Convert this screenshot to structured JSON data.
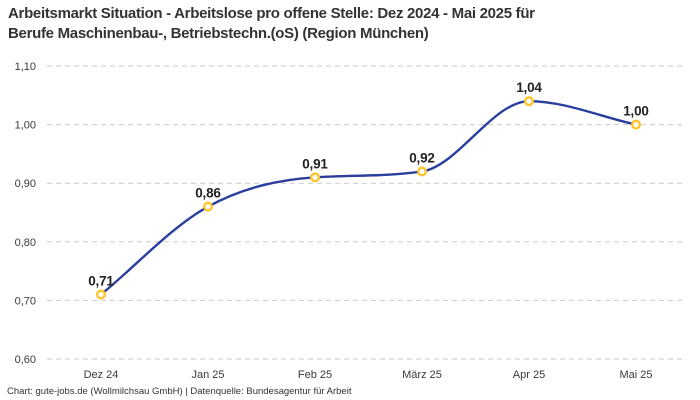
{
  "title": {
    "text": "Arbeitsmarkt Situation - Arbeitslose pro offene Stelle: Dez 2024 - Mai 2025 für\nBerufe Maschinenbau-, Betriebstechn.(oS) (Region München)"
  },
  "footer": {
    "text": "Chart: gute-jobs.de (Wollmilchsau GmbH) | Datenquelle: Bundesagentur für Arbeit"
  },
  "chart_data": {
    "type": "line",
    "title": "Arbeitsmarkt Situation - Arbeitslose pro offene Stelle: Dez 2024 - Mai 2025 für Berufe Maschinenbau-, Betriebstechn.(oS) (Region München)",
    "categories": [
      "Dez 24",
      "Jan 25",
      "Feb 25",
      "März 25",
      "Apr 25",
      "Mai 25"
    ],
    "values": [
      0.71,
      0.86,
      0.91,
      0.92,
      1.04,
      1.0
    ],
    "point_labels": [
      "0,71",
      "0,86",
      "0,91",
      "0,92",
      "1,04",
      "1,00"
    ],
    "y_tick_values": [
      1.1,
      1.0,
      0.9,
      0.8,
      0.7,
      0.6
    ],
    "y_tick_labels": [
      "1,10",
      "1,00",
      "0,90",
      "0,80",
      "0,70",
      "0,60"
    ],
    "ylim": [
      0.6,
      1.1
    ],
    "xlabel": "",
    "ylabel": "",
    "legend": "none",
    "grid": "horizontal-dashed",
    "curve": "smooth-monotone",
    "colors": {
      "line": "#2a3f9d",
      "marker_ring": "#ffc42c",
      "marker_fill": "#ffffff",
      "grid": "#c9c9c9",
      "axis_text": "#3a3a3a",
      "label_text": "#222222",
      "background": "#ffffff"
    }
  }
}
